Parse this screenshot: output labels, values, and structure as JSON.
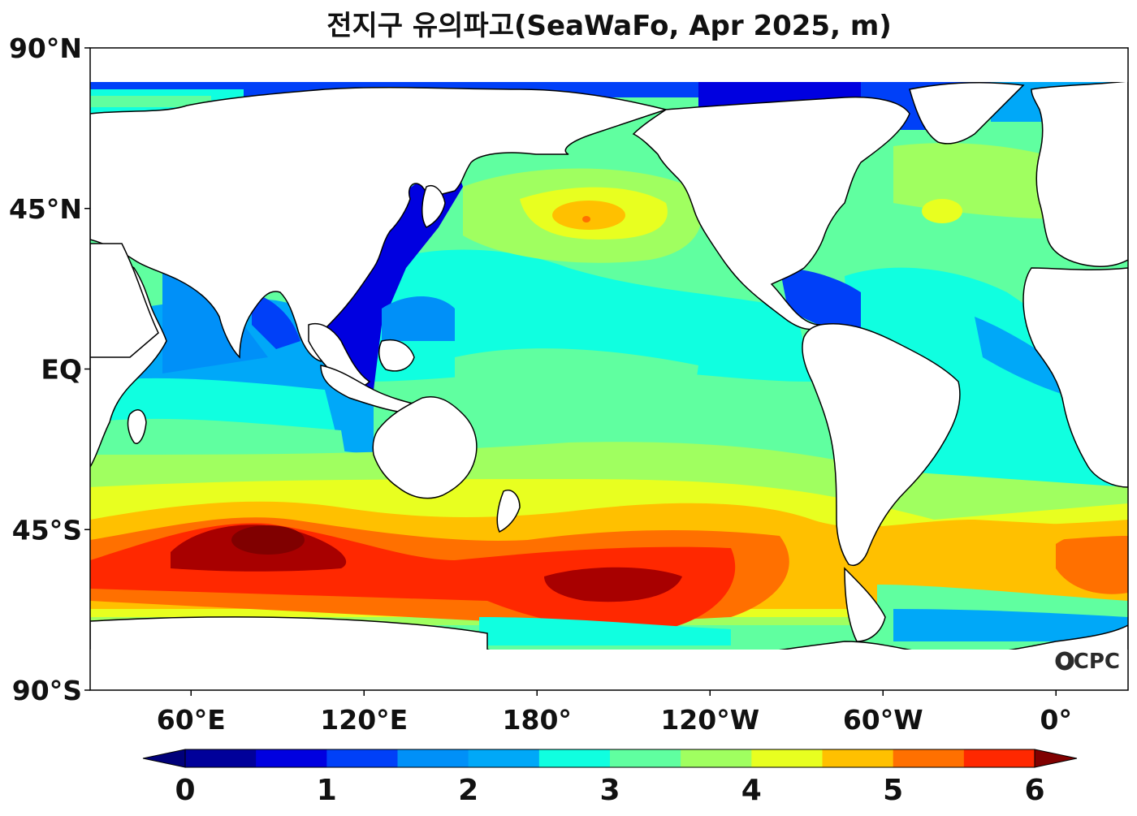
{
  "title": "전지구 유의파고(SeaWaFo, Apr 2025, m)",
  "logo": "OCPC",
  "map": {
    "lon_range": [
      25,
      385
    ],
    "lat_range": [
      -90,
      90
    ],
    "y_ticks": [
      {
        "lat": 90,
        "label": "90°N"
      },
      {
        "lat": 45,
        "label": "45°N"
      },
      {
        "lat": 0,
        "label": "EQ"
      },
      {
        "lat": -45,
        "label": "45°S"
      },
      {
        "lat": -90,
        "label": "90°S"
      }
    ],
    "x_ticks": [
      {
        "lon": 60,
        "label": "60°E"
      },
      {
        "lon": 120,
        "label": "120°E"
      },
      {
        "lon": 180,
        "label": "180°"
      },
      {
        "lon": 240,
        "label": "120°W"
      },
      {
        "lon": 300,
        "label": "60°W"
      },
      {
        "lon": 360,
        "label": "0°"
      }
    ]
  },
  "colorbar": {
    "min": 0,
    "max": 6,
    "step": 0.5,
    "tick_labels": [
      "0",
      "1",
      "2",
      "3",
      "4",
      "5",
      "6"
    ],
    "colors": [
      "#00009a",
      "#0000e0",
      "#0040f8",
      "#0090f8",
      "#00a8f8",
      "#10ffe0",
      "#60ffa0",
      "#a0ff60",
      "#e8ff20",
      "#ffc000",
      "#ff7000",
      "#ff2800",
      "#a80000"
    ],
    "under_color": "#00007a",
    "over_color": "#800000"
  }
}
